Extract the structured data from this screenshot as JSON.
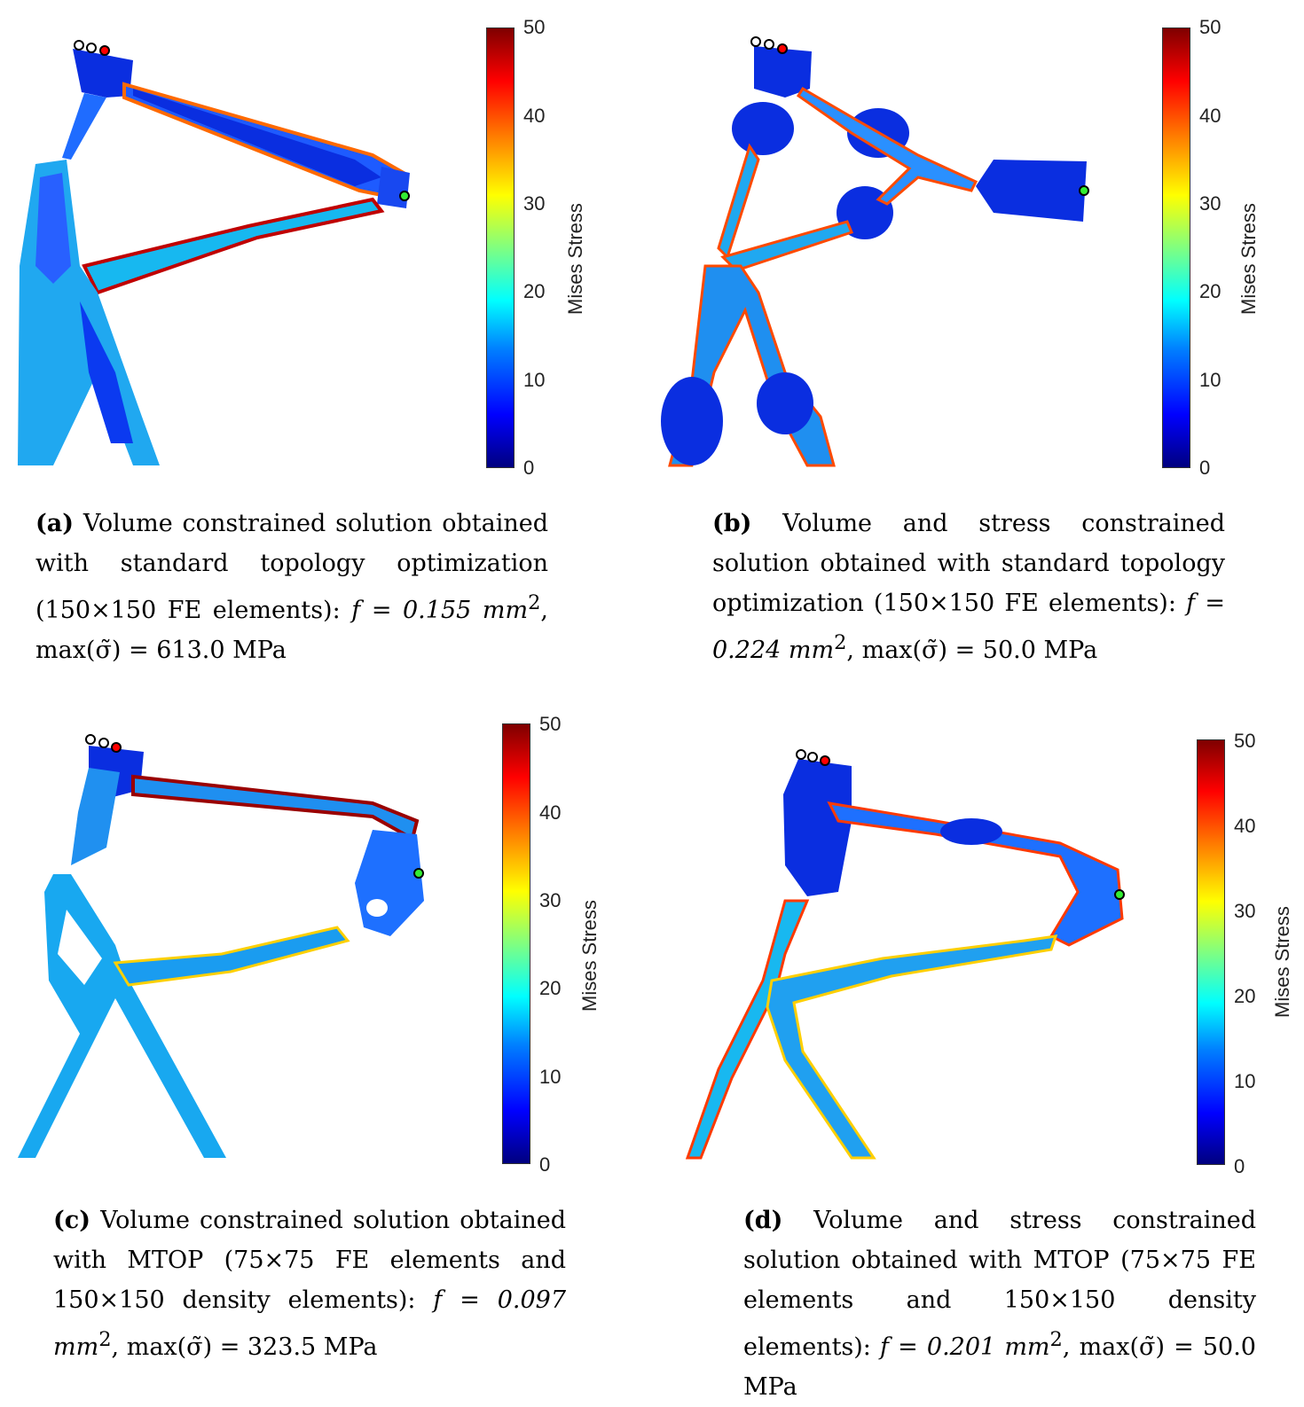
{
  "colorbar": {
    "label": "Mises Stress",
    "ticks": [
      "0",
      "10",
      "20",
      "30",
      "40",
      "50"
    ]
  },
  "panels": [
    {
      "id": "a",
      "tag": "(a)",
      "caption_text": " Volume constrained solution obtained with standard topology optimization (150×150 FE elements): ",
      "f_value": "f = 0.155 mm",
      "f_exp": "2",
      "max_text": ", max(σ̃) = 613.0 MPa"
    },
    {
      "id": "b",
      "tag": "(b)",
      "caption_text": " Volume and stress constrained solution obtained with standard topology optimization (150×150 FE elements): ",
      "f_value": "f = 0.224 mm",
      "f_exp": "2",
      "max_text": ", max(σ̃) = 50.0 MPa"
    },
    {
      "id": "c",
      "tag": "(c)",
      "caption_text": " Volume constrained solution obtained with MTOP (75×75 FE elements and 150×150 density elements): ",
      "f_value": "f = 0.097 mm",
      "f_exp": "2",
      "max_text": ", max(σ̃) = 323.5 MPa"
    },
    {
      "id": "d",
      "tag": "(d)",
      "caption_text": " Volume and stress constrained solution obtained with MTOP (75×75 FE elements and 150×150 density elements): ",
      "f_value": "f = 0.201 mm",
      "f_exp": "2",
      "max_text": ", max(σ̃) = 50.0 MPa"
    }
  ]
}
